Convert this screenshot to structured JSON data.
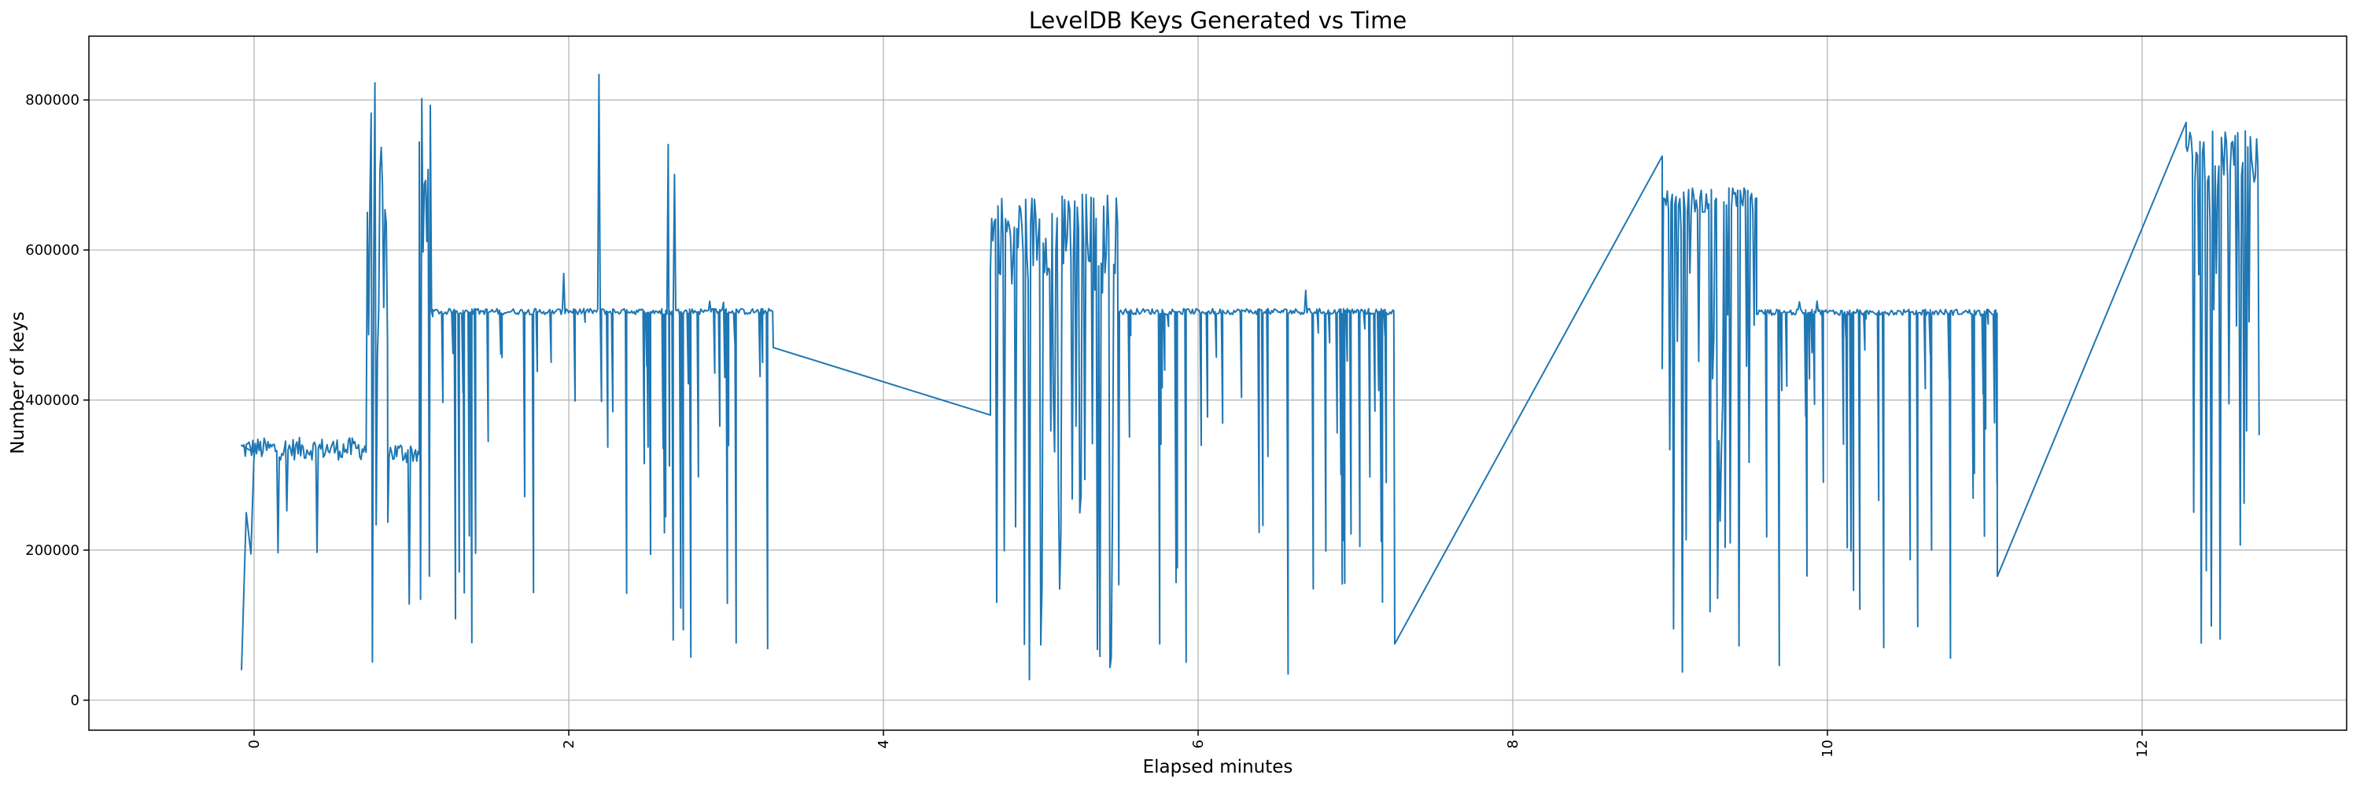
{
  "chart_data": {
    "type": "line",
    "title": "LevelDB Keys Generated vs Time",
    "xlabel": "Elapsed minutes",
    "ylabel": "Number of keys",
    "xlim": [
      -1.05,
      13.3
    ],
    "ylim": [
      -40000,
      885000
    ],
    "grid": true,
    "legend": "none",
    "x_ticks": [
      0,
      2,
      4,
      6,
      8,
      10,
      12
    ],
    "x_tick_labels": [
      "0",
      "2",
      "4",
      "6",
      "8",
      "10",
      "12"
    ],
    "x_tick_rotation": 90,
    "y_ticks": [
      0,
      200000,
      400000,
      600000,
      800000
    ],
    "y_tick_labels": [
      "0",
      "200000",
      "400000",
      "600000",
      "800000"
    ],
    "line_color": "#1f77b4",
    "series": [
      {
        "segments": [
          {
            "x_start": -0.08,
            "x_end": 0.72,
            "base": 335000,
            "pattern": "noisy-plateau",
            "dip_min": 150000,
            "spike_max": 350000,
            "lead_in": [
              [
                -0.08,
                40000
              ],
              [
                -0.05,
                250000
              ],
              [
                -0.02,
                195000
              ],
              [
                0.0,
                330000
              ]
            ]
          },
          {
            "x_start": 0.72,
            "x_end": 0.85,
            "base": 520000,
            "pattern": "burst",
            "dip_min": 30000,
            "spike_max": 840000
          },
          {
            "x_start": 0.85,
            "x_end": 1.05,
            "base": 330000,
            "pattern": "noisy-plateau",
            "dip_min": 60000,
            "spike_max": 520000
          },
          {
            "x_start": 1.05,
            "x_end": 1.12,
            "base": 520000,
            "pattern": "burst",
            "dip_min": 40000,
            "spike_max": 840000
          },
          {
            "x_start": 1.12,
            "x_end": 3.3,
            "base": 518000,
            "pattern": "plateau-dips",
            "dip_min": 20000,
            "spike_max": 840000
          },
          {
            "x_start": 3.3,
            "x_end": 4.68,
            "pattern": "linear",
            "points": [
              [
                3.3,
                470000
              ],
              [
                4.68,
                380000
              ]
            ]
          },
          {
            "x_start": 4.68,
            "x_end": 5.5,
            "base": 600000,
            "pattern": "burst",
            "dip_min": 10000,
            "spike_max": 680000
          },
          {
            "x_start": 5.5,
            "x_end": 7.25,
            "base": 518000,
            "pattern": "plateau-dips",
            "dip_min": 5000,
            "spike_max": 555000
          },
          {
            "x_start": 7.25,
            "x_end": 8.95,
            "pattern": "linear",
            "points": [
              [
                7.25,
                75000
              ],
              [
                8.95,
                725000
              ]
            ]
          },
          {
            "x_start": 8.95,
            "x_end": 9.55,
            "base": 660000,
            "pattern": "burst",
            "dip_min": 15000,
            "spike_max": 685000
          },
          {
            "x_start": 9.55,
            "x_end": 11.08,
            "base": 517000,
            "pattern": "plateau-dips",
            "dip_min": 10000,
            "spike_max": 548000
          },
          {
            "x_start": 11.08,
            "x_end": 12.28,
            "pattern": "linear",
            "points": [
              [
                11.08,
                165000
              ],
              [
                12.28,
                770000
              ]
            ]
          },
          {
            "x_start": 12.28,
            "x_end": 12.75,
            "base": 710000,
            "pattern": "burst",
            "dip_min": 3000,
            "spike_max": 760000
          }
        ]
      }
    ]
  }
}
